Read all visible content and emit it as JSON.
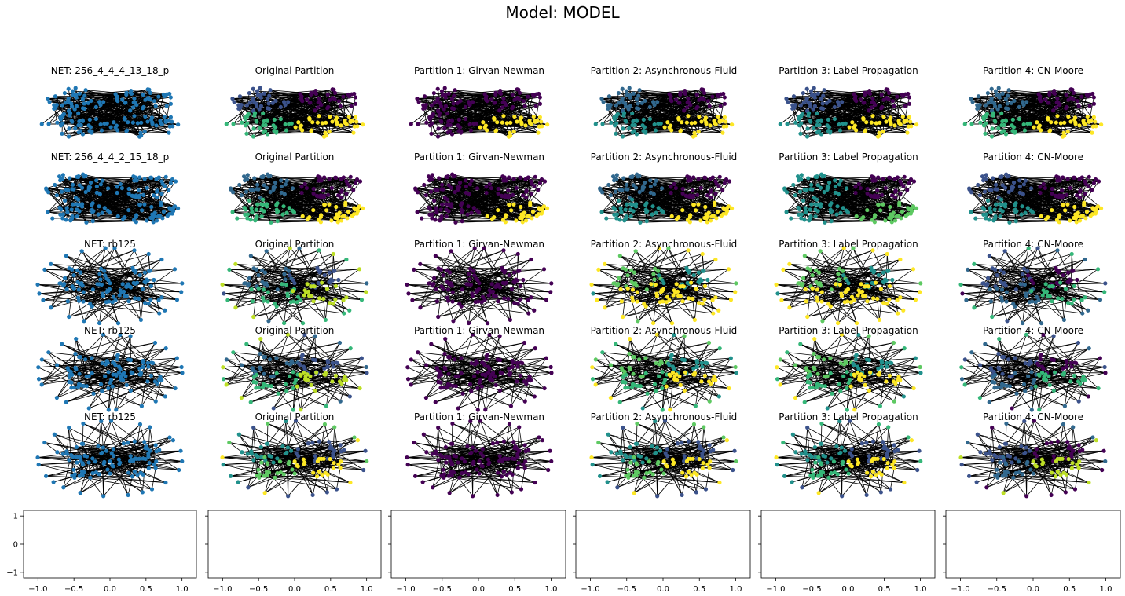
{
  "figure": {
    "suptitle": "Model: MODEL",
    "rows": [
      {
        "network": {
          "title": "NET: 256_4_4_4_13_18_p",
          "layout": "blob"
        },
        "panels": [
          {
            "title": "Original Partition",
            "colors": [
              "#3b528b",
              "#440154",
              "#35b779",
              "#fde725"
            ]
          },
          {
            "title": "Partition 1: Girvan-Newman",
            "colors": [
              "#440154",
              "#440154",
              "#440154",
              "#fde725"
            ]
          },
          {
            "title": "Partition 2: Asynchronous-Fluid",
            "colors": [
              "#31688e",
              "#440154",
              "#21918c",
              "#fde725"
            ]
          },
          {
            "title": "Partition 3: Label Propagation",
            "colors": [
              "#3b528b",
              "#440154",
              "#21918c",
              "#fde725"
            ]
          },
          {
            "title": "Partition 4: CN-Moore",
            "colors": [
              "#31688e",
              "#440154",
              "#35b779",
              "#fde725"
            ]
          }
        ]
      },
      {
        "network": {
          "title": "NET: 256_4_4_2_15_18_p",
          "layout": "blob"
        },
        "panels": [
          {
            "title": "Original Partition",
            "colors": [
              "#31688e",
              "#440154",
              "#35b779",
              "#fde725"
            ]
          },
          {
            "title": "Partition 1: Girvan-Newman",
            "colors": [
              "#440154",
              "#440154",
              "#440154",
              "#fde725"
            ]
          },
          {
            "title": "Partition 2: Asynchronous-Fluid",
            "colors": [
              "#31688e",
              "#440154",
              "#21918c",
              "#fde725"
            ]
          },
          {
            "title": "Partition 3: Label Propagation",
            "colors": [
              "#21918c",
              "#440154",
              "#21918c",
              "#5ec962"
            ]
          },
          {
            "title": "Partition 4: CN-Moore",
            "colors": [
              "#3b528b",
              "#440154",
              "#21918c",
              "#fde725"
            ]
          }
        ]
      },
      {
        "network": {
          "title": "NET: rb125",
          "layout": "star"
        },
        "panels": [
          {
            "title": "Original Partition",
            "colors": [
              "#31688e",
              "#3b528b",
              "#35b779",
              "#bddf26"
            ]
          },
          {
            "title": "Partition 1: Girvan-Newman",
            "colors": [
              "#440154",
              "#440154",
              "#440154",
              "#440154"
            ]
          },
          {
            "title": "Partition 2: Asynchronous-Fluid",
            "colors": [
              "#5ec962",
              "#21918c",
              "#fde725",
              "#fde725"
            ]
          },
          {
            "title": "Partition 3: Label Propagation",
            "colors": [
              "#5ec962",
              "#21918c",
              "#fde725",
              "#fde725"
            ]
          },
          {
            "title": "Partition 4: CN-Moore",
            "colors": [
              "#3b528b",
              "#440154",
              "#31688e",
              "#35b779"
            ]
          }
        ]
      },
      {
        "network": {
          "title": "NET: rb125",
          "layout": "star"
        },
        "panels": [
          {
            "title": "Original Partition",
            "colors": [
              "#31688e",
              "#3b528b",
              "#35b779",
              "#bddf26"
            ]
          },
          {
            "title": "Partition 1: Girvan-Newman",
            "colors": [
              "#440154",
              "#440154",
              "#440154",
              "#440154"
            ]
          },
          {
            "title": "Partition 2: Asynchronous-Fluid",
            "colors": [
              "#5ec962",
              "#21918c",
              "#35b779",
              "#fde725"
            ]
          },
          {
            "title": "Partition 3: Label Propagation",
            "colors": [
              "#5ec962",
              "#21918c",
              "#35b779",
              "#fde725"
            ]
          },
          {
            "title": "Partition 4: CN-Moore",
            "colors": [
              "#3b528b",
              "#440154",
              "#31688e",
              "#35b779"
            ]
          }
        ]
      },
      {
        "network": {
          "title": "NET: rb125",
          "layout": "star"
        },
        "panels": [
          {
            "title": "Original Partition",
            "colors": [
              "#21918c",
              "#3b528b",
              "#5ec962",
              "#fde725"
            ]
          },
          {
            "title": "Partition 1: Girvan-Newman",
            "colors": [
              "#440154",
              "#440154",
              "#440154",
              "#440154"
            ]
          },
          {
            "title": "Partition 2: Asynchronous-Fluid",
            "colors": [
              "#21918c",
              "#3b528b",
              "#5ec962",
              "#fde725"
            ]
          },
          {
            "title": "Partition 3: Label Propagation",
            "colors": [
              "#21918c",
              "#3b528b",
              "#35b779",
              "#fde725"
            ]
          },
          {
            "title": "Partition 4: CN-Moore",
            "colors": [
              "#3b528b",
              "#440154",
              "#31688e",
              "#bddf26"
            ]
          }
        ]
      }
    ],
    "node_color_default": "#1f77b4",
    "edge_color": "#000000"
  },
  "chart_data": {
    "type": "scatter",
    "empty_axes_count": 6,
    "xlim": [
      -1.2,
      1.2
    ],
    "ylim": [
      -1.2,
      1.2
    ],
    "xticks": [
      -1.0,
      -0.5,
      0.0,
      0.5,
      1.0
    ],
    "xtick_labels": [
      "−1.0",
      "−0.5",
      "0.0",
      "0.5",
      "1.0"
    ],
    "yticks": [
      1,
      0,
      -1
    ],
    "ytick_labels": [
      "1",
      "0",
      "−1"
    ],
    "ytick_labels_shown_on": "first axes only",
    "series": []
  }
}
